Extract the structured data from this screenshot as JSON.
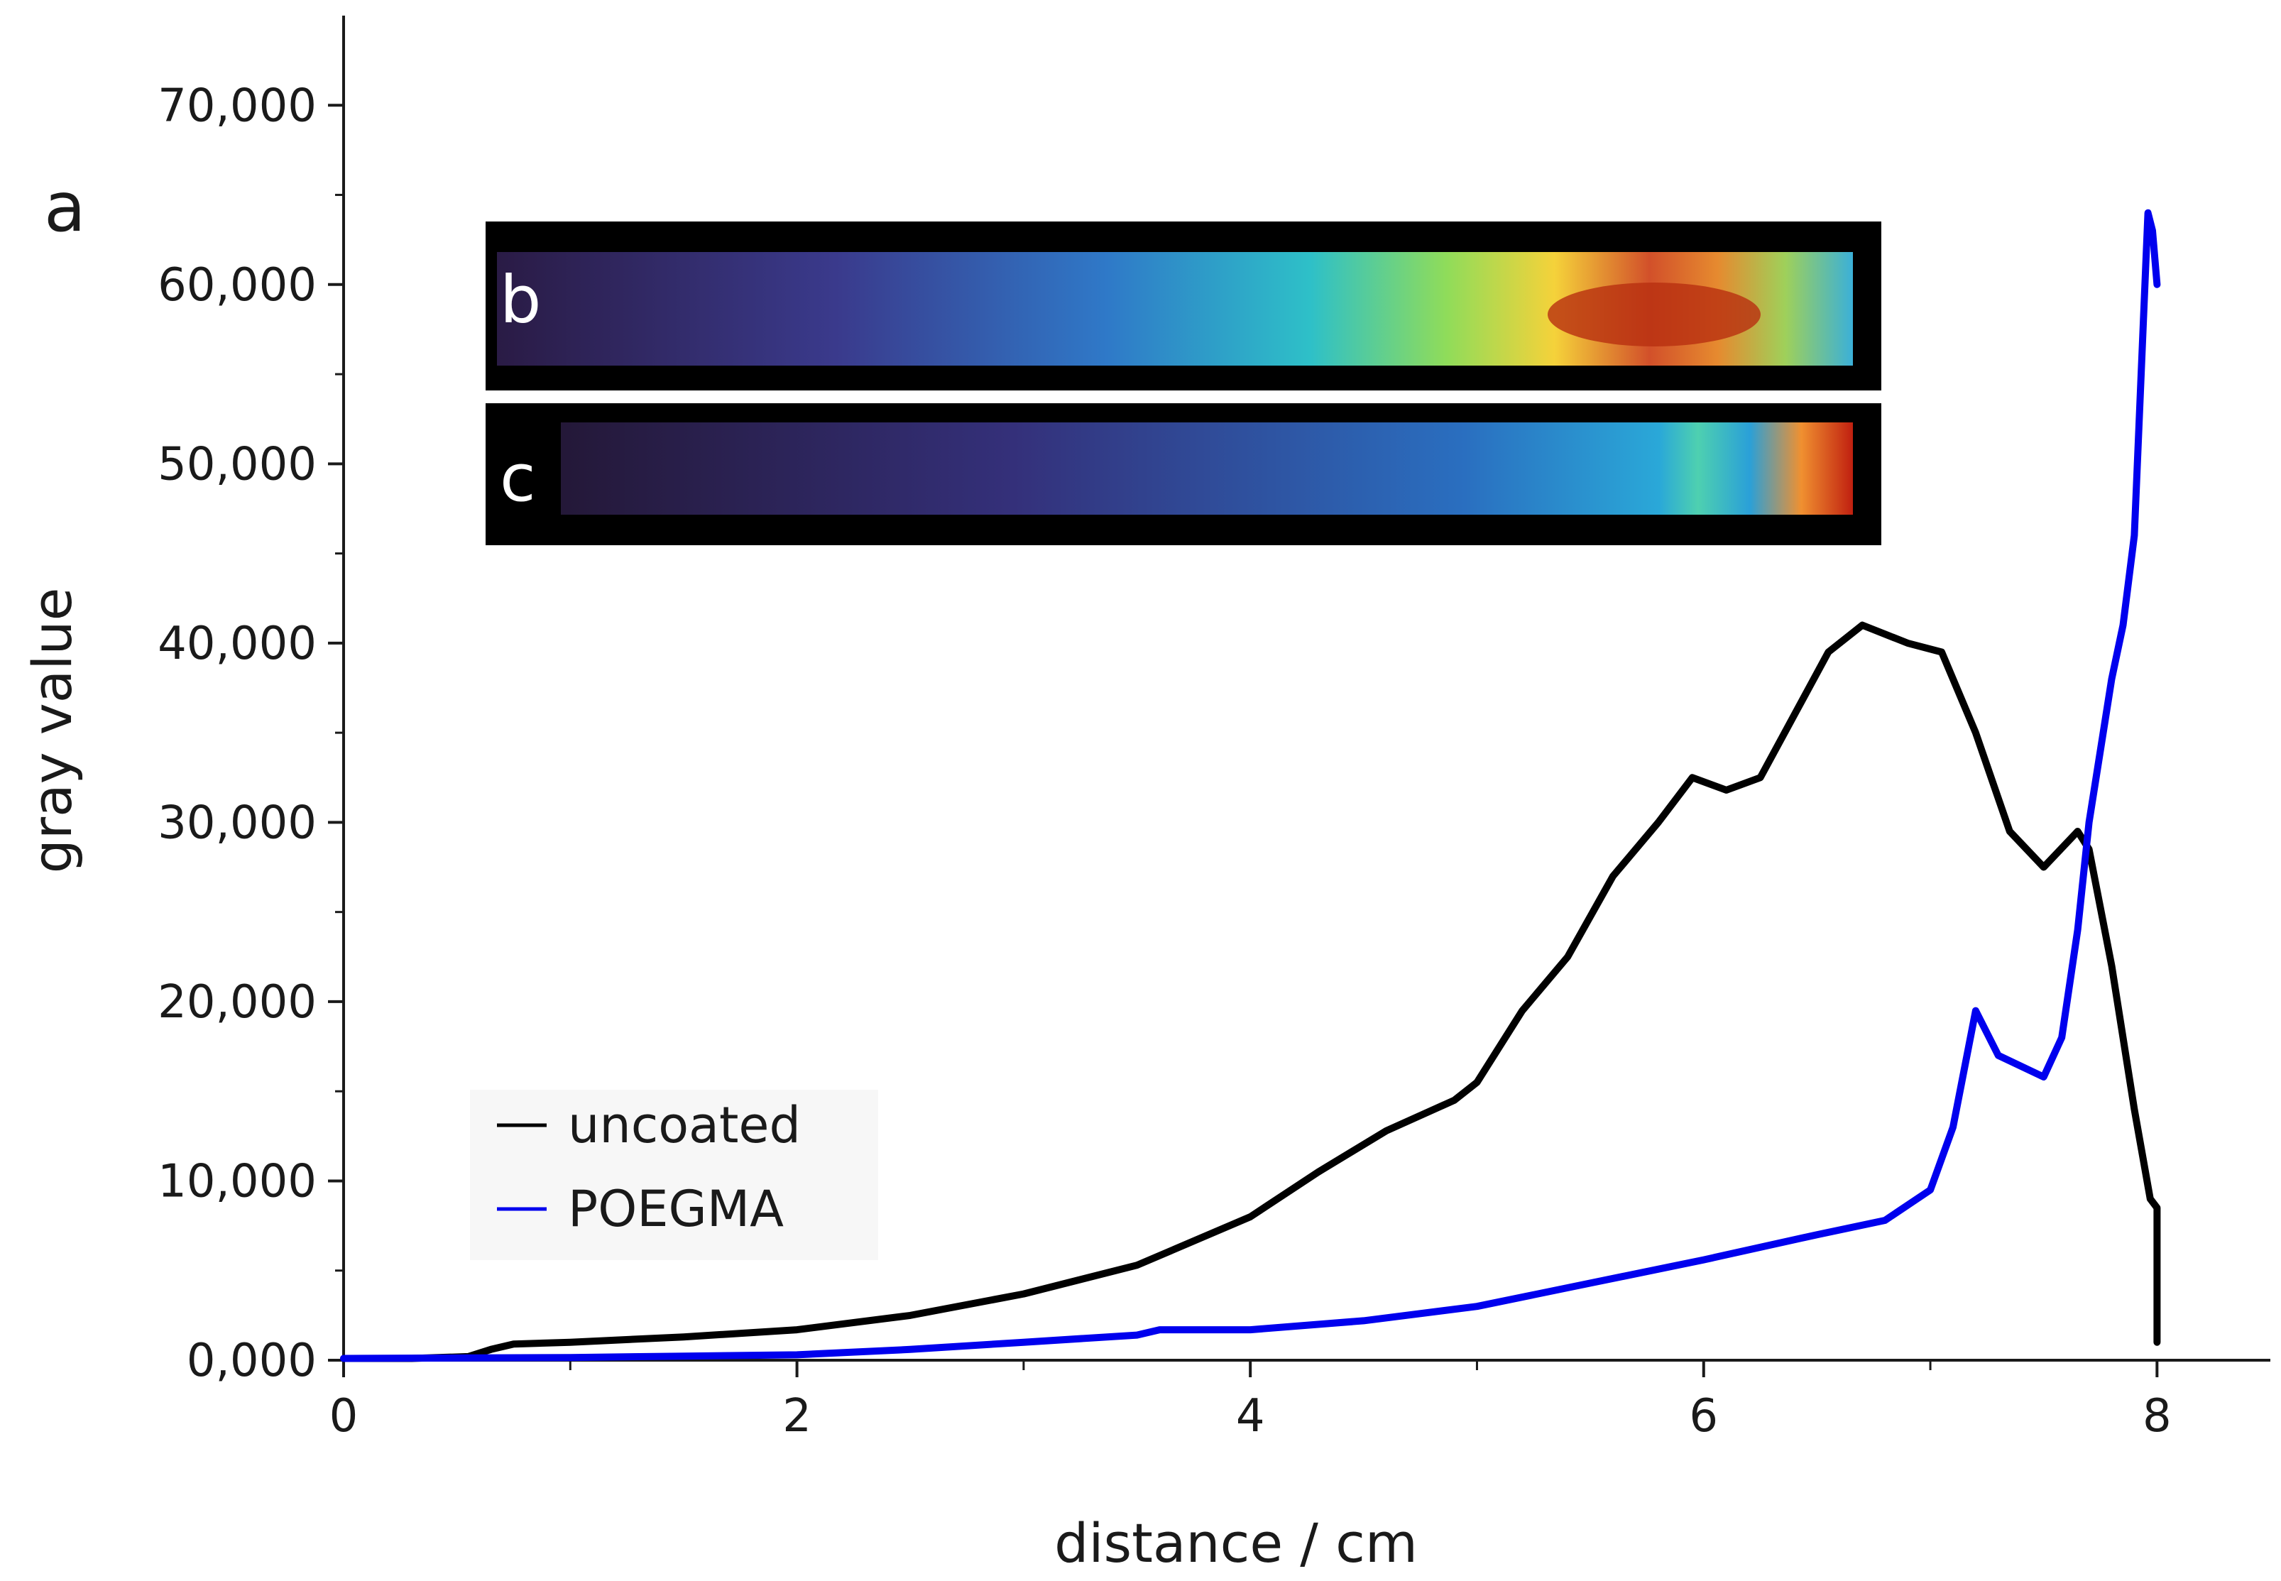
{
  "chart_data": {
    "type": "line",
    "title": "",
    "xlabel": "distance / cm",
    "ylabel": "gray value",
    "xlim": [
      0,
      8.5
    ],
    "ylim": [
      0,
      75000
    ],
    "x_ticks": [
      0,
      2,
      4,
      6,
      8
    ],
    "x_tick_labels": [
      "0",
      "2",
      "4",
      "6",
      "8"
    ],
    "y_ticks": [
      0,
      10000,
      20000,
      30000,
      40000,
      50000,
      60000,
      70000
    ],
    "y_tick_labels": [
      "0,000",
      "10,000",
      "20,000",
      "30,000",
      "40,000",
      "50,000",
      "60,000",
      "70,000"
    ],
    "grid": false,
    "legend_position": "bottom-left",
    "series": [
      {
        "name": "uncoated",
        "color": "#000000",
        "points": [
          [
            0,
            100
          ],
          [
            0.3,
            100
          ],
          [
            0.55,
            200
          ],
          [
            0.65,
            600
          ],
          [
            0.75,
            900
          ],
          [
            1.0,
            1000
          ],
          [
            1.5,
            1300
          ],
          [
            2.0,
            1700
          ],
          [
            2.5,
            2500
          ],
          [
            3.0,
            3700
          ],
          [
            3.5,
            5300
          ],
          [
            4.0,
            8000
          ],
          [
            4.3,
            10500
          ],
          [
            4.6,
            12800
          ],
          [
            4.9,
            14500
          ],
          [
            5.0,
            15500
          ],
          [
            5.2,
            19500
          ],
          [
            5.4,
            22500
          ],
          [
            5.6,
            27000
          ],
          [
            5.8,
            30000
          ],
          [
            5.95,
            32500
          ],
          [
            6.1,
            31800
          ],
          [
            6.25,
            32500
          ],
          [
            6.4,
            36000
          ],
          [
            6.55,
            39500
          ],
          [
            6.7,
            41000
          ],
          [
            6.9,
            40000
          ],
          [
            7.05,
            39500
          ],
          [
            7.2,
            35000
          ],
          [
            7.35,
            29500
          ],
          [
            7.5,
            27500
          ],
          [
            7.65,
            29500
          ],
          [
            7.7,
            28500
          ],
          [
            7.8,
            22000
          ],
          [
            7.9,
            14000
          ],
          [
            7.97,
            9000
          ],
          [
            8.0,
            8500
          ],
          [
            8.0,
            1000
          ]
        ]
      },
      {
        "name": "POEGMA",
        "color": "#0000ee",
        "points": [
          [
            0,
            100
          ],
          [
            1.0,
            150
          ],
          [
            2.0,
            300
          ],
          [
            2.5,
            600
          ],
          [
            3.0,
            1000
          ],
          [
            3.5,
            1400
          ],
          [
            3.6,
            1700
          ],
          [
            4.0,
            1700
          ],
          [
            4.5,
            2200
          ],
          [
            5.0,
            3000
          ],
          [
            5.5,
            4300
          ],
          [
            6.0,
            5600
          ],
          [
            6.5,
            7000
          ],
          [
            6.8,
            7800
          ],
          [
            7.0,
            9500
          ],
          [
            7.1,
            13000
          ],
          [
            7.2,
            19500
          ],
          [
            7.3,
            17000
          ],
          [
            7.5,
            15800
          ],
          [
            7.58,
            18000
          ],
          [
            7.65,
            24000
          ],
          [
            7.7,
            30000
          ],
          [
            7.8,
            38000
          ],
          [
            7.85,
            41000
          ],
          [
            7.9,
            46000
          ],
          [
            7.92,
            52000
          ],
          [
            7.94,
            58000
          ],
          [
            7.96,
            64000
          ],
          [
            7.98,
            63000
          ],
          [
            8.0,
            60000
          ]
        ]
      }
    ],
    "annotations": {
      "panel_a": "a",
      "panel_b": "b",
      "panel_c": "c"
    }
  }
}
